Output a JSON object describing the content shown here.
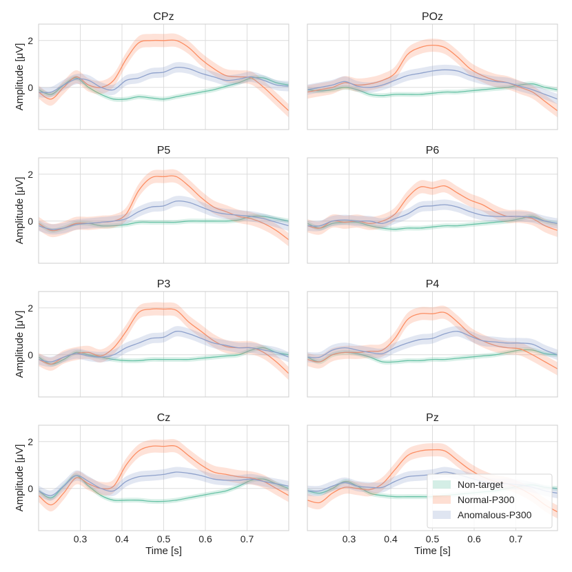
{
  "chart_data": {
    "type": "line",
    "xlabel": "Time [s]",
    "ylabel": "Amplitude [μV]",
    "xlim": [
      0.2,
      0.8
    ],
    "ylim": [
      -1.8,
      2.7
    ],
    "xticks": [
      0.3,
      0.4,
      0.5,
      0.6,
      0.7
    ],
    "xtick_labels": [
      "0.3",
      "0.4",
      "0.5",
      "0.6",
      "0.7"
    ],
    "yticks": [
      0,
      2
    ],
    "ytick_labels": [
      "0",
      "2"
    ],
    "grid": true,
    "legend": {
      "placement": "bottom-right of Pz panel",
      "entries": [
        "Non-target",
        "Normal-P300",
        "Anomalous-P300"
      ]
    },
    "series_style": [
      {
        "name": "Non-target",
        "color": "#66c2a5",
        "band": 0.1
      },
      {
        "name": "Normal-P300",
        "color": "#fc8d62",
        "band": 0.28
      },
      {
        "name": "Anomalous-P300",
        "color": "#8da0cb",
        "band": 0.22
      }
    ],
    "x": [
      0.2,
      0.23,
      0.26,
      0.29,
      0.32,
      0.35,
      0.38,
      0.41,
      0.44,
      0.47,
      0.5,
      0.53,
      0.56,
      0.59,
      0.62,
      0.65,
      0.68,
      0.71,
      0.74,
      0.77,
      0.8
    ],
    "panels": [
      {
        "title": "CPz",
        "series": [
          {
            "name": "Non-target",
            "values": [
              -0.1,
              -0.3,
              0.1,
              0.4,
              0.0,
              -0.3,
              -0.5,
              -0.5,
              -0.4,
              -0.45,
              -0.5,
              -0.4,
              -0.3,
              -0.2,
              -0.1,
              0.05,
              0.2,
              0.4,
              0.4,
              0.2,
              0.1
            ]
          },
          {
            "name": "Normal-P300",
            "values": [
              -0.2,
              -0.5,
              0.0,
              0.45,
              0.1,
              0.0,
              0.3,
              1.2,
              1.9,
              2.0,
              2.0,
              2.0,
              1.7,
              1.2,
              0.8,
              0.5,
              0.45,
              0.4,
              0.0,
              -0.5,
              -1.0
            ]
          },
          {
            "name": "Anomalous-P300",
            "values": [
              -0.2,
              -0.2,
              0.1,
              0.35,
              0.3,
              0.0,
              -0.1,
              0.3,
              0.4,
              0.6,
              0.65,
              0.85,
              0.8,
              0.6,
              0.45,
              0.3,
              0.35,
              0.45,
              0.3,
              0.1,
              0.05
            ]
          }
        ]
      },
      {
        "title": "POz",
        "series": [
          {
            "name": "Non-target",
            "values": [
              -0.1,
              -0.15,
              -0.1,
              0.0,
              -0.1,
              -0.3,
              -0.35,
              -0.3,
              -0.3,
              -0.3,
              -0.25,
              -0.2,
              -0.2,
              -0.15,
              -0.1,
              -0.05,
              0.0,
              0.1,
              0.15,
              0.0,
              -0.1
            ]
          },
          {
            "name": "Normal-P300",
            "values": [
              -0.2,
              -0.1,
              0.0,
              0.2,
              0.1,
              0.15,
              0.3,
              0.6,
              1.4,
              1.7,
              1.8,
              1.7,
              1.3,
              0.8,
              0.5,
              0.3,
              0.2,
              0.0,
              -0.2,
              -0.6,
              -1.0
            ]
          },
          {
            "name": "Anomalous-P300",
            "values": [
              -0.1,
              0.0,
              0.1,
              0.25,
              0.05,
              0.0,
              0.1,
              0.3,
              0.5,
              0.6,
              0.7,
              0.75,
              0.7,
              0.5,
              0.35,
              0.25,
              0.2,
              0.05,
              -0.1,
              -0.3,
              -0.5
            ]
          }
        ]
      },
      {
        "title": "P5",
        "series": [
          {
            "name": "Non-target",
            "values": [
              -0.1,
              -0.4,
              -0.3,
              -0.1,
              -0.1,
              -0.2,
              -0.2,
              -0.15,
              -0.05,
              -0.05,
              -0.05,
              -0.05,
              0.0,
              0.0,
              0.0,
              0.0,
              0.05,
              0.2,
              0.2,
              0.1,
              0.0
            ]
          },
          {
            "name": "Normal-P300",
            "values": [
              -0.1,
              -0.4,
              -0.3,
              -0.1,
              -0.1,
              -0.05,
              0.0,
              0.3,
              1.3,
              1.85,
              1.9,
              1.9,
              1.5,
              1.0,
              0.6,
              0.4,
              0.2,
              0.1,
              -0.1,
              -0.4,
              -0.8
            ]
          },
          {
            "name": "Anomalous-P300",
            "values": [
              -0.2,
              -0.35,
              -0.3,
              -0.15,
              -0.1,
              -0.05,
              0.0,
              0.1,
              0.4,
              0.6,
              0.65,
              0.85,
              0.8,
              0.6,
              0.4,
              0.3,
              0.25,
              0.2,
              0.1,
              -0.05,
              -0.2
            ]
          }
        ]
      },
      {
        "title": "P6",
        "series": [
          {
            "name": "Non-target",
            "values": [
              -0.1,
              -0.3,
              -0.1,
              -0.05,
              -0.05,
              -0.2,
              -0.3,
              -0.35,
              -0.3,
              -0.3,
              -0.25,
              -0.2,
              -0.2,
              -0.15,
              -0.1,
              -0.05,
              0.0,
              0.1,
              0.2,
              0.0,
              -0.1
            ]
          },
          {
            "name": "Normal-P300",
            "values": [
              -0.2,
              -0.3,
              0.0,
              -0.05,
              0.0,
              -0.1,
              0.0,
              0.3,
              1.0,
              1.45,
              1.4,
              1.5,
              1.2,
              0.9,
              0.7,
              0.4,
              0.2,
              0.2,
              0.1,
              -0.2,
              -0.4
            ]
          },
          {
            "name": "Anomalous-P300",
            "values": [
              -0.2,
              -0.2,
              0.0,
              0.05,
              0.0,
              0.0,
              -0.1,
              0.1,
              0.3,
              0.6,
              0.65,
              0.7,
              0.6,
              0.4,
              0.25,
              0.2,
              0.2,
              0.2,
              0.15,
              0.0,
              -0.1
            ]
          }
        ]
      },
      {
        "title": "P3",
        "series": [
          {
            "name": "Non-target",
            "values": [
              -0.1,
              -0.4,
              -0.2,
              0.1,
              0.0,
              -0.1,
              -0.2,
              -0.25,
              -0.25,
              -0.2,
              -0.2,
              -0.2,
              -0.2,
              -0.15,
              -0.1,
              -0.05,
              0.0,
              0.2,
              0.3,
              0.1,
              0.0
            ]
          },
          {
            "name": "Normal-P300",
            "values": [
              -0.2,
              -0.4,
              -0.1,
              0.05,
              0.1,
              -0.05,
              0.3,
              1.0,
              1.8,
              1.95,
              1.95,
              1.9,
              1.4,
              1.0,
              0.6,
              0.35,
              0.3,
              0.3,
              0.1,
              -0.3,
              -0.8
            ]
          },
          {
            "name": "Anomalous-P300",
            "values": [
              -0.2,
              -0.3,
              -0.1,
              0.05,
              -0.05,
              -0.1,
              0.0,
              0.3,
              0.5,
              0.7,
              0.75,
              1.0,
              0.9,
              0.7,
              0.5,
              0.4,
              0.3,
              0.3,
              0.2,
              0.1,
              -0.1
            ]
          }
        ]
      },
      {
        "title": "P4",
        "series": [
          {
            "name": "Non-target",
            "values": [
              -0.1,
              -0.3,
              0.0,
              0.1,
              0.05,
              -0.1,
              -0.3,
              -0.3,
              -0.25,
              -0.25,
              -0.2,
              -0.2,
              -0.15,
              -0.1,
              -0.05,
              0.0,
              0.1,
              0.2,
              0.2,
              0.05,
              0.0
            ]
          },
          {
            "name": "Normal-P300",
            "values": [
              -0.2,
              -0.3,
              0.0,
              0.1,
              0.1,
              0.15,
              0.2,
              0.7,
              1.5,
              1.75,
              1.75,
              1.8,
              1.4,
              0.9,
              0.6,
              0.4,
              0.3,
              0.25,
              0.0,
              -0.3,
              -0.6
            ]
          },
          {
            "name": "Anomalous-P300",
            "values": [
              -0.1,
              -0.1,
              0.2,
              0.3,
              0.2,
              0.1,
              0.05,
              0.3,
              0.5,
              0.65,
              0.7,
              0.9,
              1.0,
              0.8,
              0.6,
              0.55,
              0.5,
              0.5,
              0.45,
              0.2,
              0.0
            ]
          }
        ]
      },
      {
        "title": "Cz",
        "series": [
          {
            "name": "Non-target",
            "values": [
              -0.1,
              -0.4,
              0.1,
              0.55,
              0.1,
              -0.3,
              -0.5,
              -0.5,
              -0.5,
              -0.55,
              -0.55,
              -0.5,
              -0.4,
              -0.3,
              -0.2,
              -0.1,
              0.1,
              0.35,
              0.4,
              0.2,
              0.0
            ]
          },
          {
            "name": "Normal-P300",
            "values": [
              -0.3,
              -0.7,
              -0.2,
              0.45,
              0.2,
              0.0,
              0.1,
              1.0,
              1.6,
              1.8,
              1.8,
              1.8,
              1.4,
              1.0,
              0.7,
              0.6,
              0.5,
              0.45,
              0.3,
              0.0,
              -0.3
            ]
          },
          {
            "name": "Anomalous-P300",
            "values": [
              -0.1,
              -0.3,
              0.1,
              0.55,
              0.3,
              0.0,
              -0.1,
              0.3,
              0.5,
              0.55,
              0.6,
              0.7,
              0.65,
              0.55,
              0.4,
              0.35,
              0.35,
              0.4,
              0.3,
              0.2,
              0.1
            ]
          }
        ]
      },
      {
        "title": "Pz",
        "series": [
          {
            "name": "Non-target",
            "values": [
              -0.1,
              -0.2,
              0.0,
              0.3,
              0.1,
              -0.2,
              -0.3,
              -0.35,
              -0.35,
              -0.35,
              -0.35,
              -0.3,
              -0.25,
              -0.2,
              -0.15,
              -0.1,
              0.0,
              0.1,
              0.15,
              0.05,
              0.0
            ]
          },
          {
            "name": "Normal-P300",
            "values": [
              -0.5,
              -0.6,
              -0.2,
              0.05,
              0.0,
              -0.05,
              0.2,
              0.8,
              1.4,
              1.6,
              1.65,
              1.6,
              1.2,
              0.8,
              0.5,
              0.3,
              0.2,
              0.0,
              -0.3,
              -0.7,
              -1.0
            ]
          },
          {
            "name": "Anomalous-P300",
            "values": [
              -0.1,
              -0.1,
              0.1,
              0.25,
              0.1,
              0.05,
              0.05,
              0.3,
              0.5,
              0.55,
              0.6,
              0.7,
              0.6,
              0.45,
              0.3,
              0.2,
              0.2,
              0.15,
              0.05,
              -0.1,
              -0.2
            ]
          }
        ]
      }
    ]
  }
}
